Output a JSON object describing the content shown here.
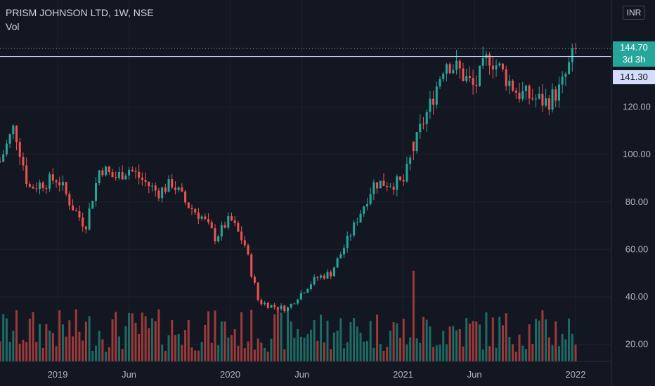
{
  "legend": {
    "title": "PRISM JOHNSON LTD, 1W, NSE",
    "volume_label": "Vol"
  },
  "currency_button": "INR",
  "current_price": {
    "value": "144.70",
    "countdown": "3d 3h"
  },
  "crosshair_price": "141.30",
  "colors": {
    "background": "#131722",
    "up": "#26a69a",
    "down": "#ef5350",
    "up_volume": "#1e6b64",
    "down_volume": "#9b3a3a",
    "grid": "#1e222d",
    "axis_text": "#b2b5be",
    "crosshair": "#9598a1"
  },
  "chart_data": {
    "type": "candlestick",
    "interval": "1W",
    "y_axis": {
      "ticks": [
        20,
        40,
        60,
        80,
        100,
        120
      ],
      "tick_labels": [
        "20.00",
        "40.00",
        "60.00",
        "80.00",
        "100.00",
        "120.00"
      ],
      "range": [
        12,
        160
      ]
    },
    "x_axis": {
      "tick_labels": [
        "2019",
        "Jun",
        "2020",
        "Jun",
        "2021",
        "Jun",
        "2022"
      ],
      "tick_dates": [
        "2019-01",
        "2019-06",
        "2020-01",
        "2020-06",
        "2021-01",
        "2021-06",
        "2022-01"
      ]
    },
    "series": [
      {
        "name": "Price",
        "key_points": [
          {
            "date": "2018-09",
            "close": 97
          },
          {
            "date": "2018-10",
            "close": 112
          },
          {
            "date": "2018-11",
            "close": 86
          },
          {
            "date": "2018-12",
            "close": 88
          },
          {
            "date": "2019-01",
            "close": 90
          },
          {
            "date": "2019-02",
            "close": 78
          },
          {
            "date": "2019-03",
            "close": 70
          },
          {
            "date": "2019-04",
            "close": 95
          },
          {
            "date": "2019-05",
            "close": 90
          },
          {
            "date": "2019-06",
            "close": 94
          },
          {
            "date": "2019-07",
            "close": 89
          },
          {
            "date": "2019-08",
            "close": 84
          },
          {
            "date": "2019-09",
            "close": 88
          },
          {
            "date": "2019-10",
            "close": 79
          },
          {
            "date": "2019-11",
            "close": 74
          },
          {
            "date": "2019-12",
            "close": 65
          },
          {
            "date": "2020-01",
            "close": 73
          },
          {
            "date": "2020-02",
            "close": 62
          },
          {
            "date": "2020-03",
            "close": 38
          },
          {
            "date": "2020-04",
            "close": 36
          },
          {
            "date": "2020-05",
            "close": 35
          },
          {
            "date": "2020-06",
            "close": 42
          },
          {
            "date": "2020-07",
            "close": 48
          },
          {
            "date": "2020-08",
            "close": 50
          },
          {
            "date": "2020-09",
            "close": 62
          },
          {
            "date": "2020-10",
            "close": 75
          },
          {
            "date": "2020-11",
            "close": 88
          },
          {
            "date": "2020-12",
            "close": 88
          },
          {
            "date": "2021-01",
            "close": 88
          },
          {
            "date": "2021-02",
            "close": 108
          },
          {
            "date": "2021-03",
            "close": 122
          },
          {
            "date": "2021-04",
            "close": 140
          },
          {
            "date": "2021-05",
            "close": 135
          },
          {
            "date": "2021-06",
            "close": 128
          },
          {
            "date": "2021-07",
            "close": 142
          },
          {
            "date": "2021-08",
            "close": 134
          },
          {
            "date": "2021-09",
            "close": 126
          },
          {
            "date": "2021-10",
            "close": 124
          },
          {
            "date": "2021-11",
            "close": 122
          },
          {
            "date": "2021-12",
            "close": 128
          },
          {
            "date": "2022-01",
            "close": 144.7
          }
        ]
      }
    ],
    "last_price": 144.7,
    "crosshair_price": 141.3,
    "volume_peak_date": "2021-01"
  }
}
